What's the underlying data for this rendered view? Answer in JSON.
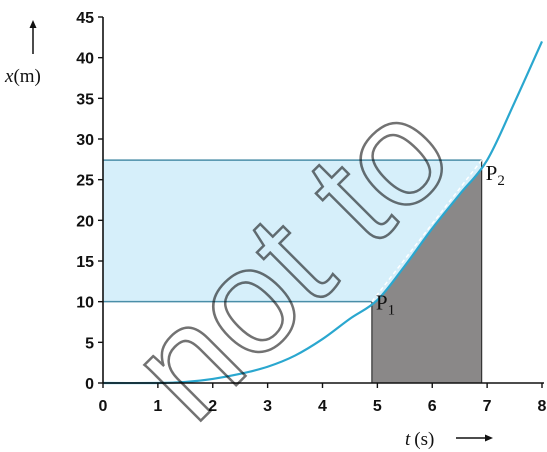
{
  "chart_data": {
    "type": "line",
    "xlabel_var": "t",
    "xlabel_unit": "(s)",
    "ylabel_var": "x",
    "ylabel_unit": "(m)",
    "xlim": [
      0,
      8
    ],
    "ylim": [
      0,
      45
    ],
    "xticks": [
      0,
      1,
      2,
      3,
      4,
      5,
      6,
      7,
      8
    ],
    "yticks": [
      0,
      5,
      10,
      15,
      20,
      25,
      30,
      35,
      40,
      45
    ],
    "series": [
      {
        "x": [
          0,
          1,
          1.5,
          2,
          2.5,
          3,
          3.5,
          4,
          4.5,
          5,
          5.5,
          6,
          6.5,
          7,
          7.5,
          8
        ],
        "y": [
          0,
          0,
          0.125,
          0.5,
          1.125,
          2,
          3.375,
          5.4,
          7.9,
          10.2,
          14.4,
          19.0,
          23.2,
          27.4,
          34.5,
          42.0
        ],
        "color": "#2aa7cf"
      }
    ],
    "points": [
      {
        "label": "P",
        "sub": "1",
        "x": 4.9,
        "y": 10
      },
      {
        "label": "P",
        "sub": "2",
        "x": 6.9,
        "y": 27.4
      }
    ],
    "shaded_rect": {
      "x_from": 0,
      "x_to": 6.9,
      "y_from": 10,
      "y_to": 27.4,
      "color": "#d6effa"
    },
    "shaded_triangle": {
      "x_from": 4.9,
      "x_to": 6.9,
      "color": "#8a8888"
    },
    "watermark": "not to"
  }
}
